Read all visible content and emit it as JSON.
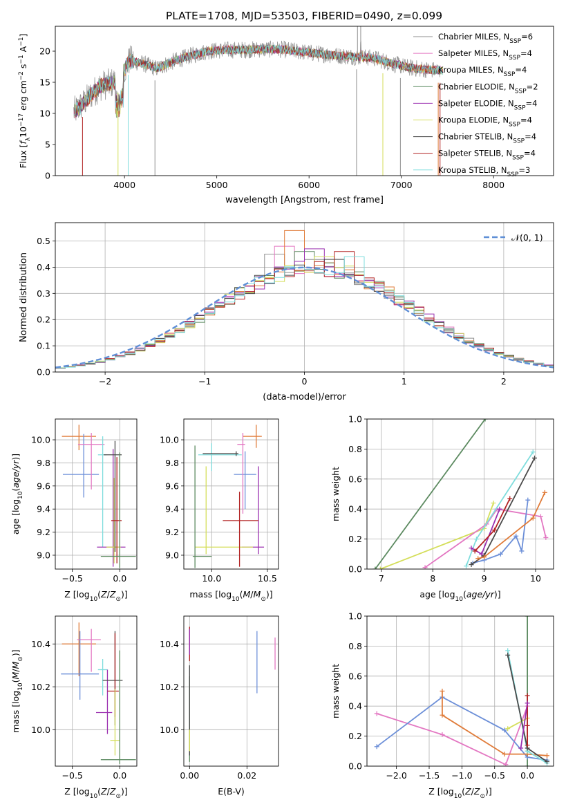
{
  "figure_title": "PLATE=1708, MJD=53503, FIBERID=0490, z=0.099",
  "colors": {
    "Chabrier MILES": "#8f8f8f",
    "Salpeter MILES": "#e377c2",
    "Kroupa MILES": "#e07b39",
    "Chabrier ELODIE": "#5c8a60",
    "Salpeter ELODIE": "#9b30b0",
    "Kroupa ELODIE": "#d4de5a",
    "Chabrier STELIB": "#4a4a4a",
    "Salpeter STELIB": "#b22222",
    "Kroupa STELIB": "#7fdddd",
    "normal": "#5f8fd6",
    "extra": "#6c8fd8"
  },
  "chart_data": [
    {
      "id": "spectrum",
      "type": "line",
      "xlabel": "wavelength [Angstrom, rest frame]",
      "ylabel": "Flux [f_λ10^-17 erg cm^-2 s^-1 A^-1]",
      "xlim": [
        3250,
        8650
      ],
      "ylim": [
        0,
        24
      ],
      "xticks": [
        4000,
        5000,
        6000,
        7000,
        8000
      ],
      "yticks": [
        0,
        5,
        10,
        15,
        20
      ],
      "grid": false,
      "legend_position": "upper-right",
      "legend": [
        "Chabrier MILES, N_SSP=6",
        "Salpeter MILES, N_SSP=4",
        "Kroupa MILES, N_SSP=4",
        "Chabrier ELODIE, N_SSP=2",
        "Salpeter ELODIE, N_SSP=4",
        "Kroupa ELODIE, N_SSP=4",
        "Chabrier STELIB, N_SSP=4",
        "Salpeter STELIB, N_SSP=4",
        "Kroupa STELIB, N_SSP=3"
      ],
      "continuum": [
        [
          3450,
          10.2
        ],
        [
          3550,
          11.5
        ],
        [
          3650,
          13.2
        ],
        [
          3750,
          14.5
        ],
        [
          3850,
          14.8
        ],
        [
          3950,
          15.5
        ],
        [
          4050,
          18.5
        ],
        [
          4200,
          18.0
        ],
        [
          4350,
          17.2
        ],
        [
          4500,
          18.2
        ],
        [
          4700,
          19.2
        ],
        [
          4900,
          20.0
        ],
        [
          5100,
          20.2
        ],
        [
          5300,
          20.2
        ],
        [
          5500,
          20.3
        ],
        [
          5700,
          20.3
        ],
        [
          5900,
          19.9
        ],
        [
          6100,
          19.6
        ],
        [
          6300,
          19.3
        ],
        [
          6500,
          19.1
        ],
        [
          6700,
          18.9
        ],
        [
          6900,
          18.0
        ],
        [
          7100,
          17.3
        ],
        [
          7300,
          17.0
        ],
        [
          7450,
          16.9
        ]
      ]
    },
    {
      "id": "residuals",
      "type": "line",
      "xlabel": "(data-model)/error",
      "ylabel": "Normed distribution",
      "xlim": [
        -2.5,
        2.5
      ],
      "ylim": [
        0,
        0.57
      ],
      "xticks": [
        -2,
        -1,
        0,
        1,
        2
      ],
      "yticks": [
        0.0,
        0.1,
        0.2,
        0.3,
        0.4,
        0.5
      ],
      "grid": true,
      "legend_position": "upper-right",
      "legend": [
        "𝒩(0, 1)"
      ],
      "bin_width": 0.1,
      "peak_bins": [
        0.45,
        0.48,
        0.54,
        0.46,
        0.47,
        0.44,
        0.43,
        0.46,
        0.44
      ]
    },
    {
      "id": "age-vs-Z",
      "type": "scatter",
      "xlabel": "Z [log10(Z/Z⊙)]",
      "ylabel": "age [log10(age/yr)]",
      "xlim": [
        -0.68,
        0.18
      ],
      "ylim": [
        8.88,
        10.18
      ],
      "xticks": [
        -0.5,
        0.0
      ],
      "yticks": [
        9.0,
        9.2,
        9.4,
        9.6,
        9.8,
        10.0
      ],
      "grid": true,
      "points": [
        {
          "x": -0.43,
          "y": 10.03,
          "xerr": [
            0.18,
            0.18
          ],
          "yerr": [
            0.12,
            0.1
          ],
          "series": "Kroupa MILES"
        },
        {
          "x": -0.38,
          "y": 9.7,
          "xerr": [
            0.22,
            0.16
          ],
          "yerr": [
            0.2,
            0.35
          ],
          "series": "extra"
        },
        {
          "x": -0.3,
          "y": 9.96,
          "xerr": [
            0.14,
            0.14
          ],
          "yerr": [
            0.39,
            0.1
          ],
          "series": "Salpeter MILES"
        },
        {
          "x": -0.18,
          "y": 9.87,
          "xerr": [
            0.05,
            0.04
          ],
          "yerr": [
            0.8,
            0.16
          ],
          "series": "Kroupa STELIB"
        },
        {
          "x": -0.07,
          "y": 9.07,
          "xerr": [
            0.17,
            0.13
          ],
          "yerr": [
            0.17,
            0.85
          ],
          "series": "Salpeter ELODIE"
        },
        {
          "x": -0.06,
          "y": 9.07,
          "xerr": [
            0.08,
            0.07
          ],
          "yerr": [
            0.14,
            0.6
          ],
          "series": "Kroupa ELODIE"
        },
        {
          "x": -0.05,
          "y": 9.87,
          "xerr": [
            0.12,
            0.07
          ],
          "yerr": [
            0.84,
            0.12
          ],
          "series": "Chabrier STELIB"
        },
        {
          "x": -0.03,
          "y": 9.3,
          "xerr": [
            0.06,
            0.05
          ],
          "yerr": [
            0.37,
            0.55
          ],
          "series": "Salpeter STELIB"
        },
        {
          "x": 0.0,
          "y": 8.99,
          "xerr": [
            0.2,
            0.17
          ],
          "yerr": [
            0.1,
            0.9
          ],
          "series": "Chabrier ELODIE"
        }
      ]
    },
    {
      "id": "age-vs-mass",
      "type": "scatter",
      "xlabel": "mass [log10(M/M⊙)]",
      "ylabel": "",
      "xlim": [
        9.75,
        10.6
      ],
      "ylim": [
        8.88,
        10.18
      ],
      "xticks": [
        10.0,
        10.5
      ],
      "yticks": [
        9.0,
        9.2,
        9.4,
        9.6,
        9.8,
        10.0
      ],
      "grid": true,
      "points": [
        {
          "x": 10.4,
          "y": 10.03,
          "xerr": [
            0.12,
            0.05
          ],
          "yerr": [
            0.1,
            0.1
          ],
          "series": "Kroupa MILES"
        },
        {
          "x": 10.3,
          "y": 9.7,
          "xerr": [
            0.1,
            0.1
          ],
          "yerr": [
            0.3,
            0.2
          ],
          "series": "extra"
        },
        {
          "x": 10.28,
          "y": 9.96,
          "xerr": [
            0.05,
            0.02
          ],
          "yerr": [
            0.6,
            0.1
          ],
          "series": "Salpeter MILES"
        },
        {
          "x": 10.0,
          "y": 9.87,
          "xerr": [
            0.12,
            0.27
          ],
          "yerr": [
            0.14,
            0.1
          ],
          "series": "Kroupa STELIB"
        },
        {
          "x": 10.42,
          "y": 9.07,
          "xerr": [
            0.15,
            0.05
          ],
          "yerr": [
            0.06,
            0.7
          ],
          "series": "Salpeter ELODIE"
        },
        {
          "x": 9.95,
          "y": 9.07,
          "xerr": [
            0.1,
            0.42
          ],
          "yerr": [
            0.06,
            0.7
          ],
          "series": "Kroupa ELODIE"
        },
        {
          "x": 10.22,
          "y": 9.88,
          "xerr": [
            0.3,
            0.02
          ],
          "yerr": [
            0.02,
            0.02
          ],
          "series": "Chabrier STELIB"
        },
        {
          "x": 10.25,
          "y": 9.3,
          "xerr": [
            0.15,
            0.17
          ],
          "yerr": [
            0.4,
            0.25
          ],
          "series": "Salpeter STELIB"
        },
        {
          "x": 9.85,
          "y": 8.99,
          "xerr": [
            0.02,
            0.15
          ],
          "yerr": [
            0.1,
            0.96
          ],
          "series": "Chabrier ELODIE"
        }
      ]
    },
    {
      "id": "weight-vs-age",
      "type": "line",
      "xlabel": "age [log10(age/yr)]",
      "ylabel": "mass weight",
      "xlim": [
        6.72,
        10.35
      ],
      "ylim": [
        0,
        1
      ],
      "xticks": [
        7,
        8,
        9,
        10
      ],
      "yticks": [
        0.0,
        0.2,
        0.4,
        0.6,
        0.8,
        1.0
      ],
      "grid": true,
      "series": [
        {
          "name": "Chabrier ELODIE",
          "points": [
            [
              6.88,
              0.0
            ],
            [
              9.02,
              1.0
            ]
          ]
        },
        {
          "name": "Kroupa ELODIE",
          "points": [
            [
              6.98,
              0.0
            ],
            [
              9.0,
              0.27
            ],
            [
              9.18,
              0.44
            ]
          ]
        },
        {
          "name": "Salpeter MILES",
          "points": [
            [
              7.85,
              0.01
            ],
            [
              9.05,
              0.3
            ],
            [
              9.25,
              0.4
            ],
            [
              10.1,
              0.35
            ],
            [
              10.2,
              0.21
            ]
          ]
        },
        {
          "name": "Kroupa STELIB",
          "points": [
            [
              8.65,
              0.02
            ],
            [
              8.85,
              0.2
            ],
            [
              9.95,
              0.78
            ]
          ]
        },
        {
          "name": "Salpeter ELODIE",
          "points": [
            [
              8.75,
              0.14
            ],
            [
              8.95,
              0.1
            ],
            [
              9.3,
              0.4
            ]
          ]
        },
        {
          "name": "extra",
          "points": [
            [
              8.78,
              0.04
            ],
            [
              9.0,
              0.06
            ],
            [
              9.32,
              0.1
            ],
            [
              9.62,
              0.22
            ],
            [
              9.73,
              0.12
            ],
            [
              9.85,
              0.46
            ]
          ]
        },
        {
          "name": "Chabrier STELIB",
          "points": [
            [
              8.75,
              0.03
            ],
            [
              9.0,
              0.09
            ],
            [
              9.98,
              0.74
            ]
          ]
        },
        {
          "name": "Salpeter STELIB",
          "points": [
            [
              8.82,
              0.12
            ],
            [
              9.2,
              0.26
            ],
            [
              9.5,
              0.47
            ]
          ]
        },
        {
          "name": "Kroupa MILES",
          "points": [
            [
              8.88,
              0.07
            ],
            [
              9.0,
              0.08
            ],
            [
              9.95,
              0.34
            ],
            [
              10.18,
              0.51
            ]
          ]
        }
      ]
    },
    {
      "id": "mass-vs-Z",
      "type": "scatter",
      "xlabel": "Z [log10(Z/Z⊙)]",
      "ylabel": "mass [log10(M/M⊙)]",
      "xlim": [
        -0.68,
        0.18
      ],
      "ylim": [
        9.83,
        10.53
      ],
      "xticks": [
        -0.5,
        0.0
      ],
      "yticks": [
        10.0,
        10.2,
        10.4
      ],
      "grid": true,
      "points": [
        {
          "x": -0.43,
          "y": 10.4,
          "xerr": [
            0.18,
            0.18
          ],
          "yerr": [
            0.15,
            0.1
          ],
          "series": "Kroupa MILES"
        },
        {
          "x": -0.3,
          "y": 10.42,
          "xerr": [
            0.15,
            0.1
          ],
          "yerr": [
            0.15,
            0.05
          ],
          "series": "Salpeter MILES"
        },
        {
          "x": -0.42,
          "y": 10.26,
          "xerr": [
            0.2,
            0.2
          ],
          "yerr": [
            0.12,
            0.2
          ],
          "series": "extra"
        },
        {
          "x": -0.18,
          "y": 10.28,
          "xerr": [
            0.05,
            0.05
          ],
          "yerr": [
            0.12,
            0.05
          ],
          "series": "Kroupa STELIB"
        },
        {
          "x": -0.13,
          "y": 10.08,
          "xerr": [
            0.12,
            0.05
          ],
          "yerr": [
            0.1,
            0.2
          ],
          "series": "Salpeter ELODIE"
        },
        {
          "x": -0.05,
          "y": 10.23,
          "xerr": [
            0.13,
            0.08
          ],
          "yerr": [
            0.21,
            0.23
          ],
          "series": "Chabrier STELIB"
        },
        {
          "x": -0.05,
          "y": 10.18,
          "xerr": [
            0.08,
            0.04
          ],
          "yerr": [
            0.12,
            0.27
          ],
          "series": "Salpeter STELIB"
        },
        {
          "x": -0.05,
          "y": 9.95,
          "xerr": [
            0.05,
            0.05
          ],
          "yerr": [
            0.07,
            0.24
          ],
          "series": "Kroupa ELODIE"
        },
        {
          "x": 0.0,
          "y": 9.86,
          "xerr": [
            0.2,
            0.17
          ],
          "yerr": [
            0.02,
            0.51
          ],
          "series": "Chabrier ELODIE"
        }
      ]
    },
    {
      "id": "mass-vs-EBV",
      "type": "scatter",
      "xlabel": "E(B-V)",
      "ylabel": "",
      "xlim": [
        -0.002,
        0.031
      ],
      "ylim": [
        9.83,
        10.53
      ],
      "xticks": [
        0.0,
        0.02
      ],
      "xtick_labels": [
        "0.00",
        "0.02"
      ],
      "yticks": [
        10.0,
        10.2,
        10.4
      ],
      "grid": true,
      "points": [
        {
          "x": 0.0,
          "y": 10.4,
          "xerr": [
            0,
            0
          ],
          "yerr": [
            0.08,
            0.08
          ],
          "series": "Salpeter STELIB"
        },
        {
          "x": 0.0,
          "y": 10.42,
          "xerr": [
            0,
            0
          ],
          "yerr": [
            0.07,
            0.05
          ],
          "series": "Salpeter ELODIE"
        },
        {
          "x": 0.0,
          "y": 10.05,
          "xerr": [
            0,
            0
          ],
          "yerr": [
            0.2,
            0.2
          ],
          "series": "Chabrier ELODIE"
        },
        {
          "x": 0.0,
          "y": 10.0,
          "xerr": [
            0,
            0
          ],
          "yerr": [
            0.12,
            0.3
          ],
          "series": "Chabrier STELIB"
        },
        {
          "x": 0.0,
          "y": 9.95,
          "xerr": [
            0,
            0
          ],
          "yerr": [
            0.05,
            0.05
          ],
          "series": "Kroupa ELODIE"
        },
        {
          "x": 0.0235,
          "y": 10.32,
          "xerr": [
            0,
            0
          ],
          "yerr": [
            0.15,
            0.14
          ],
          "series": "extra"
        },
        {
          "x": 0.0298,
          "y": 10.36,
          "xerr": [
            0,
            0
          ],
          "yerr": [
            0.08,
            0.07
          ],
          "series": "Salpeter MILES"
        }
      ]
    },
    {
      "id": "weight-vs-Z",
      "type": "line",
      "xlabel": "Z [log10(Z/Z⊙)]",
      "ylabel": "mass weight",
      "xlim": [
        -2.45,
        0.4
      ],
      "ylim": [
        0,
        1
      ],
      "xticks": [
        -2.0,
        -1.5,
        -1.0,
        -0.5,
        0.0
      ],
      "yticks": [
        0.0,
        0.2,
        0.4,
        0.6,
        0.8,
        1.0
      ],
      "grid": true,
      "series": [
        {
          "name": "Chabrier ELODIE",
          "points": [
            [
              0.0,
              1.0
            ],
            [
              0.0,
              0.0
            ]
          ]
        },
        {
          "name": "Salpeter MILES",
          "points": [
            [
              -2.3,
              0.35
            ],
            [
              -1.3,
              0.21
            ],
            [
              -0.33,
              0.01
            ],
            [
              0.0,
              0.4
            ]
          ]
        },
        {
          "name": "extra",
          "points": [
            [
              -2.3,
              0.13
            ],
            [
              -1.3,
              0.46
            ],
            [
              -0.35,
              0.24
            ],
            [
              0.0,
              0.06
            ],
            [
              0.3,
              0.04
            ]
          ]
        },
        {
          "name": "Kroupa MILES",
          "points": [
            [
              -1.3,
              0.5
            ],
            [
              -1.3,
              0.34
            ],
            [
              -0.35,
              0.08
            ],
            [
              0.0,
              0.08
            ],
            [
              0.3,
              0.07
            ]
          ]
        },
        {
          "name": "Kroupa ELODIE",
          "points": [
            [
              -0.3,
              0.25
            ],
            [
              0.0,
              0.32
            ],
            [
              0.0,
              0.1
            ]
          ]
        },
        {
          "name": "Kroupa STELIB",
          "points": [
            [
              -0.3,
              0.77
            ],
            [
              0.0,
              0.1
            ],
            [
              0.3,
              0.02
            ]
          ]
        },
        {
          "name": "Chabrier STELIB",
          "points": [
            [
              -0.3,
              0.74
            ],
            [
              0.0,
              0.12
            ],
            [
              0.3,
              0.03
            ]
          ]
        },
        {
          "name": "Salpeter STELIB",
          "points": [
            [
              0.0,
              0.47
            ],
            [
              0.0,
              0.27
            ],
            [
              0.0,
              0.14
            ]
          ]
        },
        {
          "name": "Salpeter ELODIE",
          "points": [
            [
              0.0,
              0.42
            ],
            [
              -0.1,
              0.12
            ]
          ]
        }
      ]
    }
  ]
}
